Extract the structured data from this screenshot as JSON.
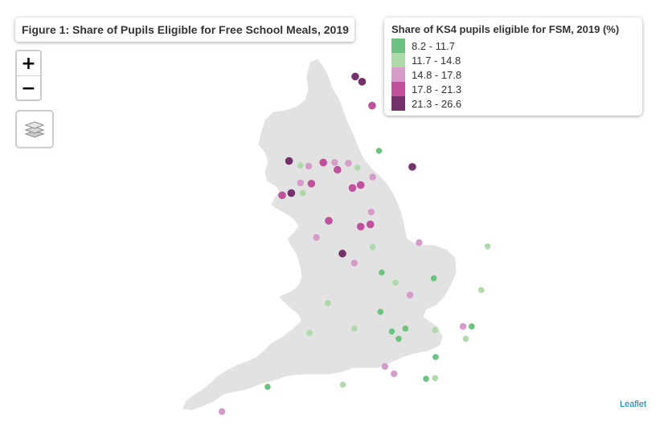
{
  "title": "Figure 1: Share of Pupils Eligible for Free School Meals, 2019",
  "controls": {
    "zoom_in": "+",
    "zoom_out": "−",
    "layers_icon": "layers-icon"
  },
  "legend": {
    "title": "Share of KS4 pupils eligible for FSM, 2019 (%)",
    "classes": [
      {
        "label": "8.2 - 11.7",
        "color": "#6dc280"
      },
      {
        "label": "11.7 - 14.8",
        "color": "#acdaa8"
      },
      {
        "label": "14.8 - 17.8",
        "color": "#d69bc9"
      },
      {
        "label": "17.8 - 21.3",
        "color": "#c0519b"
      },
      {
        "label": "21.3 - 26.6",
        "color": "#75316a"
      }
    ]
  },
  "attribution": "Leaflet",
  "land_color": "#e2e2e2",
  "markers": [
    {
      "lon": -1.6,
      "lat": 54.98,
      "cls": 4
    },
    {
      "lon": -1.45,
      "lat": 54.91,
      "cls": 4
    },
    {
      "lon": -1.23,
      "lat": 54.58,
      "cls": 3
    },
    {
      "lon": -1.08,
      "lat": 53.96,
      "cls": 0
    },
    {
      "lon": -0.35,
      "lat": 53.74,
      "cls": 4
    },
    {
      "lon": -3.05,
      "lat": 53.82,
      "cls": 4
    },
    {
      "lon": -2.8,
      "lat": 53.76,
      "cls": 1
    },
    {
      "lon": -2.62,
      "lat": 53.75,
      "cls": 2
    },
    {
      "lon": -2.3,
      "lat": 53.8,
      "cls": 3
    },
    {
      "lon": -2.05,
      "lat": 53.8,
      "cls": 2
    },
    {
      "lon": -1.75,
      "lat": 53.79,
      "cls": 2
    },
    {
      "lon": -1.55,
      "lat": 53.73,
      "cls": 1
    },
    {
      "lon": -1.99,
      "lat": 53.7,
      "cls": 3
    },
    {
      "lon": -1.22,
      "lat": 53.6,
      "cls": 2
    },
    {
      "lon": -2.8,
      "lat": 53.52,
      "cls": 2
    },
    {
      "lon": -2.56,
      "lat": 53.51,
      "cls": 3
    },
    {
      "lon": -1.48,
      "lat": 53.49,
      "cls": 3
    },
    {
      "lon": -1.66,
      "lat": 53.45,
      "cls": 3
    },
    {
      "lon": -3.0,
      "lat": 53.38,
      "cls": 4
    },
    {
      "lon": -2.75,
      "lat": 53.38,
      "cls": 1
    },
    {
      "lon": -3.2,
      "lat": 53.35,
      "cls": 3
    },
    {
      "lon": -1.25,
      "lat": 53.12,
      "cls": 2
    },
    {
      "lon": -2.18,
      "lat": 53.0,
      "cls": 3
    },
    {
      "lon": -1.27,
      "lat": 52.95,
      "cls": 3
    },
    {
      "lon": -1.48,
      "lat": 52.92,
      "cls": 3
    },
    {
      "lon": -2.45,
      "lat": 52.77,
      "cls": 2
    },
    {
      "lon": -0.2,
      "lat": 52.7,
      "cls": 2
    },
    {
      "lon": -1.88,
      "lat": 52.55,
      "cls": 4
    },
    {
      "lon": -1.22,
      "lat": 52.64,
      "cls": 1
    },
    {
      "lon": -1.62,
      "lat": 52.42,
      "cls": 2
    },
    {
      "lon": 1.3,
      "lat": 52.65,
      "cls": 1
    },
    {
      "lon": -1.02,
      "lat": 52.29,
      "cls": 0
    },
    {
      "lon": 0.12,
      "lat": 52.21,
      "cls": 0
    },
    {
      "lon": -0.72,
      "lat": 52.15,
      "cls": 1
    },
    {
      "lon": -0.4,
      "lat": 51.98,
      "cls": 2
    },
    {
      "lon": 1.16,
      "lat": 52.05,
      "cls": 1
    },
    {
      "lon": -2.2,
      "lat": 51.87,
      "cls": 1
    },
    {
      "lon": -1.05,
      "lat": 51.75,
      "cls": 0
    },
    {
      "lon": -2.6,
      "lat": 51.46,
      "cls": 1
    },
    {
      "lon": -1.62,
      "lat": 51.52,
      "cls": 1
    },
    {
      "lon": -0.8,
      "lat": 51.48,
      "cls": 0
    },
    {
      "lon": -0.5,
      "lat": 51.52,
      "cls": 0
    },
    {
      "lon": 0.15,
      "lat": 51.5,
      "cls": 1
    },
    {
      "lon": 0.76,
      "lat": 51.55,
      "cls": 2
    },
    {
      "lon": 0.95,
      "lat": 51.55,
      "cls": 0
    },
    {
      "lon": 0.82,
      "lat": 51.38,
      "cls": 1
    },
    {
      "lon": -0.65,
      "lat": 51.38,
      "cls": 0
    },
    {
      "lon": 0.16,
      "lat": 51.13,
      "cls": 0
    },
    {
      "lon": -0.95,
      "lat": 51.0,
      "cls": 2
    },
    {
      "lon": -0.75,
      "lat": 50.9,
      "cls": 2
    },
    {
      "lon": 0.15,
      "lat": 50.84,
      "cls": 1
    },
    {
      "lon": -0.05,
      "lat": 50.83,
      "cls": 0
    },
    {
      "lon": -1.87,
      "lat": 50.75,
      "cls": 1
    },
    {
      "lon": -3.52,
      "lat": 50.72,
      "cls": 0
    },
    {
      "lon": -4.52,
      "lat": 50.38,
      "cls": 2
    }
  ]
}
